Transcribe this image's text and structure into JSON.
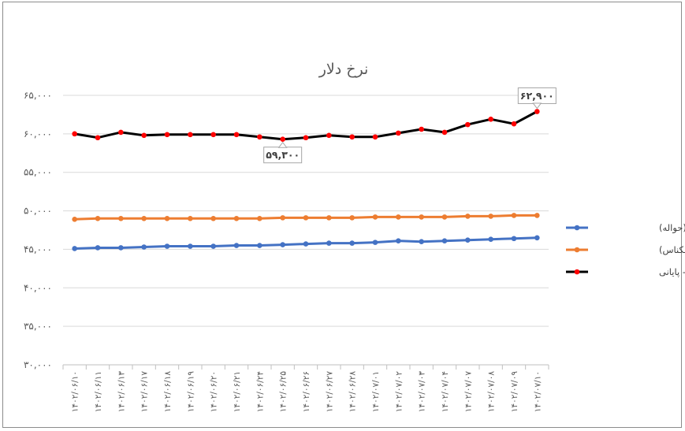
{
  "chart_data": {
    "type": "line",
    "title": "نرخ دلار",
    "ylim": [
      30000,
      65000
    ],
    "yticks": [
      30000,
      35000,
      40000,
      45000,
      50000,
      55000,
      60000,
      65000
    ],
    "ytick_labels": [
      "۳۰,۰۰۰",
      "۳۵,۰۰۰",
      "۴۰,۰۰۰",
      "۴۵,۰۰۰",
      "۵۰,۰۰۰",
      "۵۵,۰۰۰",
      "۶۰,۰۰۰",
      "۶۵,۰۰۰"
    ],
    "grid": "horizontal",
    "legend_position": "right",
    "categories": [
      "۱۴۰۲/۰۶/۱۰",
      "۱۴۰۲/۰۶/۱۱",
      "۱۴۰۲/۰۶/۱۳",
      "۱۴۰۲/۰۶/۱۷",
      "۱۴۰۲/۰۶/۱۸",
      "۱۴۰۲/۰۶/۱۹",
      "۱۴۰۲/۰۶/۲۰",
      "۱۴۰۲/۰۶/۲۱",
      "۱۴۰۲/۰۶/۲۴",
      "۱۴۰۲/۰۶/۲۵",
      "۱۴۰۲/۰۶/۲۶",
      "۱۴۰۲/۰۶/۲۷",
      "۱۴۰۲/۰۶/۲۸",
      "۱۴۰۲/۰۷/۰۱",
      "۱۴۰۲/۰۷/۰۲",
      "۱۴۰۲/۰۷/۰۳",
      "۱۴۰۲/۰۷/۰۴",
      "۱۴۰۲/۰۷/۰۷",
      "۱۴۰۲/۰۷/۰۸",
      "۱۴۰۲/۰۷/۰۹",
      "۱۴۰۲/۰۷/۱۰"
    ],
    "series": [
      {
        "name": "میانگین(حواله)",
        "color": "#4472C4",
        "marker": "#4472C4",
        "values": [
          45100,
          45200,
          45200,
          45300,
          45400,
          45400,
          45400,
          45500,
          45500,
          45600,
          45700,
          45800,
          45800,
          45900,
          46100,
          46000,
          46100,
          46200,
          46300,
          46400,
          46500
        ]
      },
      {
        "name": "میانگین(اسکناس)",
        "color": "#ED7D31",
        "marker": "#ED7D31",
        "values": [
          48900,
          49000,
          49000,
          49000,
          49000,
          49000,
          49000,
          49000,
          49000,
          49100,
          49100,
          49100,
          49100,
          49200,
          49200,
          49200,
          49200,
          49300,
          49300,
          49400,
          49400
        ]
      },
      {
        "name": "بازار آزاد - پایانی",
        "color": "#000000",
        "marker": "#FF0000",
        "values": [
          60000,
          59500,
          60200,
          59800,
          59900,
          59900,
          59900,
          59900,
          59600,
          59300,
          59500,
          59800,
          59600,
          59600,
          60100,
          60600,
          60200,
          61200,
          61900,
          61300,
          62900
        ]
      }
    ],
    "annotations": [
      {
        "series": 2,
        "index": 9,
        "label": "۵۹,۳۰۰",
        "placement": "below"
      },
      {
        "series": 2,
        "index": 20,
        "label": "۶۲,۹۰۰",
        "placement": "above"
      }
    ]
  }
}
